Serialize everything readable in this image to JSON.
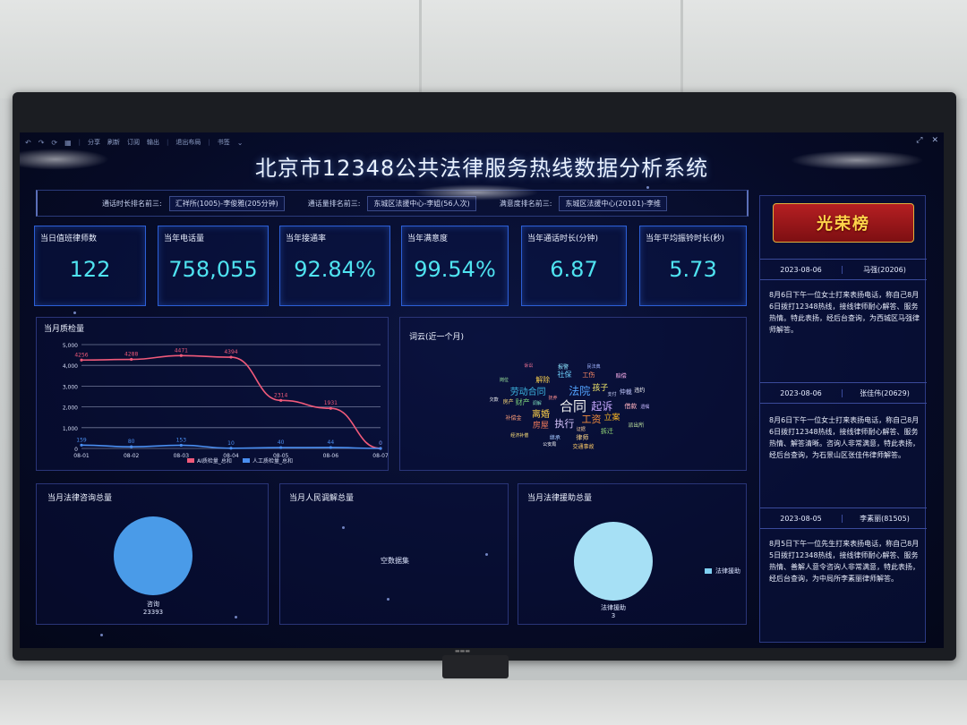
{
  "toolbar": {
    "items": [
      "分享",
      "刷新",
      "订阅",
      "输出",
      "退出布局",
      "书签"
    ]
  },
  "app_title": "北京市12348公共法律服务热线数据分析系统",
  "ranking": {
    "duration_label": "通话时长排名前三:",
    "duration_value": "汇祥所(1005)-李俊雅(205分钟)",
    "volume_label": "通话量排名前三:",
    "volume_value": "东城区法援中心-李姐(56人次)",
    "satisfaction_label": "满意度排名前三:",
    "satisfaction_value": "东城区法援中心(20101)-李维"
  },
  "kpis": [
    {
      "label": "当日值班律师数",
      "value": "122"
    },
    {
      "label": "当年电话量",
      "value": "758,055"
    },
    {
      "label": "当年接通率",
      "value": "92.84%"
    },
    {
      "label": "当年满意度",
      "value": "99.54%"
    },
    {
      "label": "当年通话时长(分钟)",
      "value": "6.87"
    },
    {
      "label": "当年平均振铃时长(秒)",
      "value": "5.73"
    }
  ],
  "chart_data": {
    "type": "line",
    "title": "当月质检量",
    "categories": [
      "08-01",
      "08-02",
      "08-03",
      "08-04",
      "08-05",
      "08-06",
      "08-07"
    ],
    "ylim": [
      0,
      5000
    ],
    "yticks": [
      "0",
      "1,000",
      "2,000",
      "3,000",
      "4,000",
      "5,000"
    ],
    "series": [
      {
        "name": "AI质检量_总和",
        "color": "#f05a7a",
        "values": [
          4256,
          4288,
          4471,
          4394,
          2314,
          1931,
          0
        ]
      },
      {
        "name": "人工质检量_总和",
        "color": "#4a8ef0",
        "values": [
          159,
          80,
          153,
          10,
          40,
          44,
          0
        ]
      }
    ],
    "grid": true,
    "legend": "bottom"
  },
  "wordcloud": {
    "title": "词云(近一个月)",
    "words": [
      {
        "t": "合同",
        "s": 15,
        "c": "#f4f4f4"
      },
      {
        "t": "法院",
        "s": 12,
        "c": "#52a3ff"
      },
      {
        "t": "起诉",
        "s": 12,
        "c": "#c8a9ff"
      },
      {
        "t": "工资",
        "s": 11,
        "c": "#f08a3c"
      },
      {
        "t": "执行",
        "s": 11,
        "c": "#d9c7ff"
      },
      {
        "t": "离婚",
        "s": 10,
        "c": "#ffd24a"
      },
      {
        "t": "劳动合同",
        "s": 10,
        "c": "#3cb4e0"
      },
      {
        "t": "孩子",
        "s": 9,
        "c": "#f0e56a"
      },
      {
        "t": "立案",
        "s": 9,
        "c": "#f5b324"
      },
      {
        "t": "房屋",
        "s": 9,
        "c": "#f07a5a"
      },
      {
        "t": "财产",
        "s": 8,
        "c": "#7ad07a"
      },
      {
        "t": "解除",
        "s": 8,
        "c": "#f2c94c"
      },
      {
        "t": "社保",
        "s": 8,
        "c": "#6fd3ff"
      },
      {
        "t": "工伤",
        "s": 7,
        "c": "#ff8a65"
      },
      {
        "t": "仲裁",
        "s": 7,
        "c": "#c2c9ff"
      },
      {
        "t": "借款",
        "s": 7,
        "c": "#ffb3c1"
      },
      {
        "t": "拆迁",
        "s": 7,
        "c": "#9be37a"
      },
      {
        "t": "律师",
        "s": 7,
        "c": "#ffd98a"
      },
      {
        "t": "继承",
        "s": 6,
        "c": "#a4c8ff"
      },
      {
        "t": "补偿金",
        "s": 6,
        "c": "#ff9f7a"
      },
      {
        "t": "房产",
        "s": 6,
        "c": "#ffdd7a"
      },
      {
        "t": "报警",
        "s": 6,
        "c": "#8ee6ff"
      },
      {
        "t": "赔偿",
        "s": 6,
        "c": "#ffb3f0"
      },
      {
        "t": "违约",
        "s": 6,
        "c": "#ffffff"
      },
      {
        "t": "派出所",
        "s": 6,
        "c": "#bfe3a0"
      },
      {
        "t": "交通事故",
        "s": 6,
        "c": "#ffcc66"
      },
      {
        "t": "民法典",
        "s": 5,
        "c": "#a0b4ff"
      },
      {
        "t": "抚养",
        "s": 5,
        "c": "#ff9090"
      },
      {
        "t": "公安局",
        "s": 5,
        "c": "#ffffff"
      },
      {
        "t": "经济补偿",
        "s": 5,
        "c": "#ffe27a"
      },
      {
        "t": "调解",
        "s": 5,
        "c": "#7fe0c0"
      },
      {
        "t": "支付",
        "s": 5,
        "c": "#d0d8ff"
      },
      {
        "t": "证据",
        "s": 5,
        "c": "#ffd2a0"
      },
      {
        "t": "遗嘱",
        "s": 5,
        "c": "#c6b8ff"
      },
      {
        "t": "欠款",
        "s": 5,
        "c": "#ffffff"
      },
      {
        "t": "岗位",
        "s": 5,
        "c": "#a3f0a3"
      },
      {
        "t": "诉讼",
        "s": 5,
        "c": "#ff7a9a"
      }
    ]
  },
  "lower_panels": {
    "consult_title": "当月法律咨询总量",
    "consult_label": "咨询",
    "consult_value": "23393",
    "mediation_title": "当月人民调解总量",
    "mediation_empty": "空数据集",
    "aid_title": "当月法律援助总量",
    "aid_label": "法律援助",
    "aid_value": "3",
    "aid_legend": "法律援助"
  },
  "sidebar": {
    "banner": "光荣榜",
    "entries": [
      {
        "date": "2023-08-06",
        "name": "马强(20206)",
        "text": "8月6日下午一位女士打来表扬电话，称自己8月6日拨打12348热线，接线律师耐心解答、服务热情。特此表扬，经后台查询，为西城区马强律师解答。"
      },
      {
        "date": "2023-08-06",
        "name": "张佳伟(20629)",
        "text": "8月6日下午一位女士打来表扬电话，称自己8月6日拨打12348热线，接线律师耐心解答、服务热情、解答清晰。咨询人非常满意，特此表扬，经后台查询，为石景山区张佳伟律师解答。"
      },
      {
        "date": "2023-08-05",
        "name": "李素丽(81505)",
        "text": "8月5日下午一位先生打来表扬电话，称自己8月5日拨打12348热线，接线律师耐心解答、服务热情、善解人意令咨询人非常满意，特此表扬，经后台查询，为中局所李素丽律师解答。"
      }
    ]
  },
  "colors": {
    "accent": "#4fe3f0",
    "panel_border": "#2c5fd6",
    "background": "#060b27"
  }
}
